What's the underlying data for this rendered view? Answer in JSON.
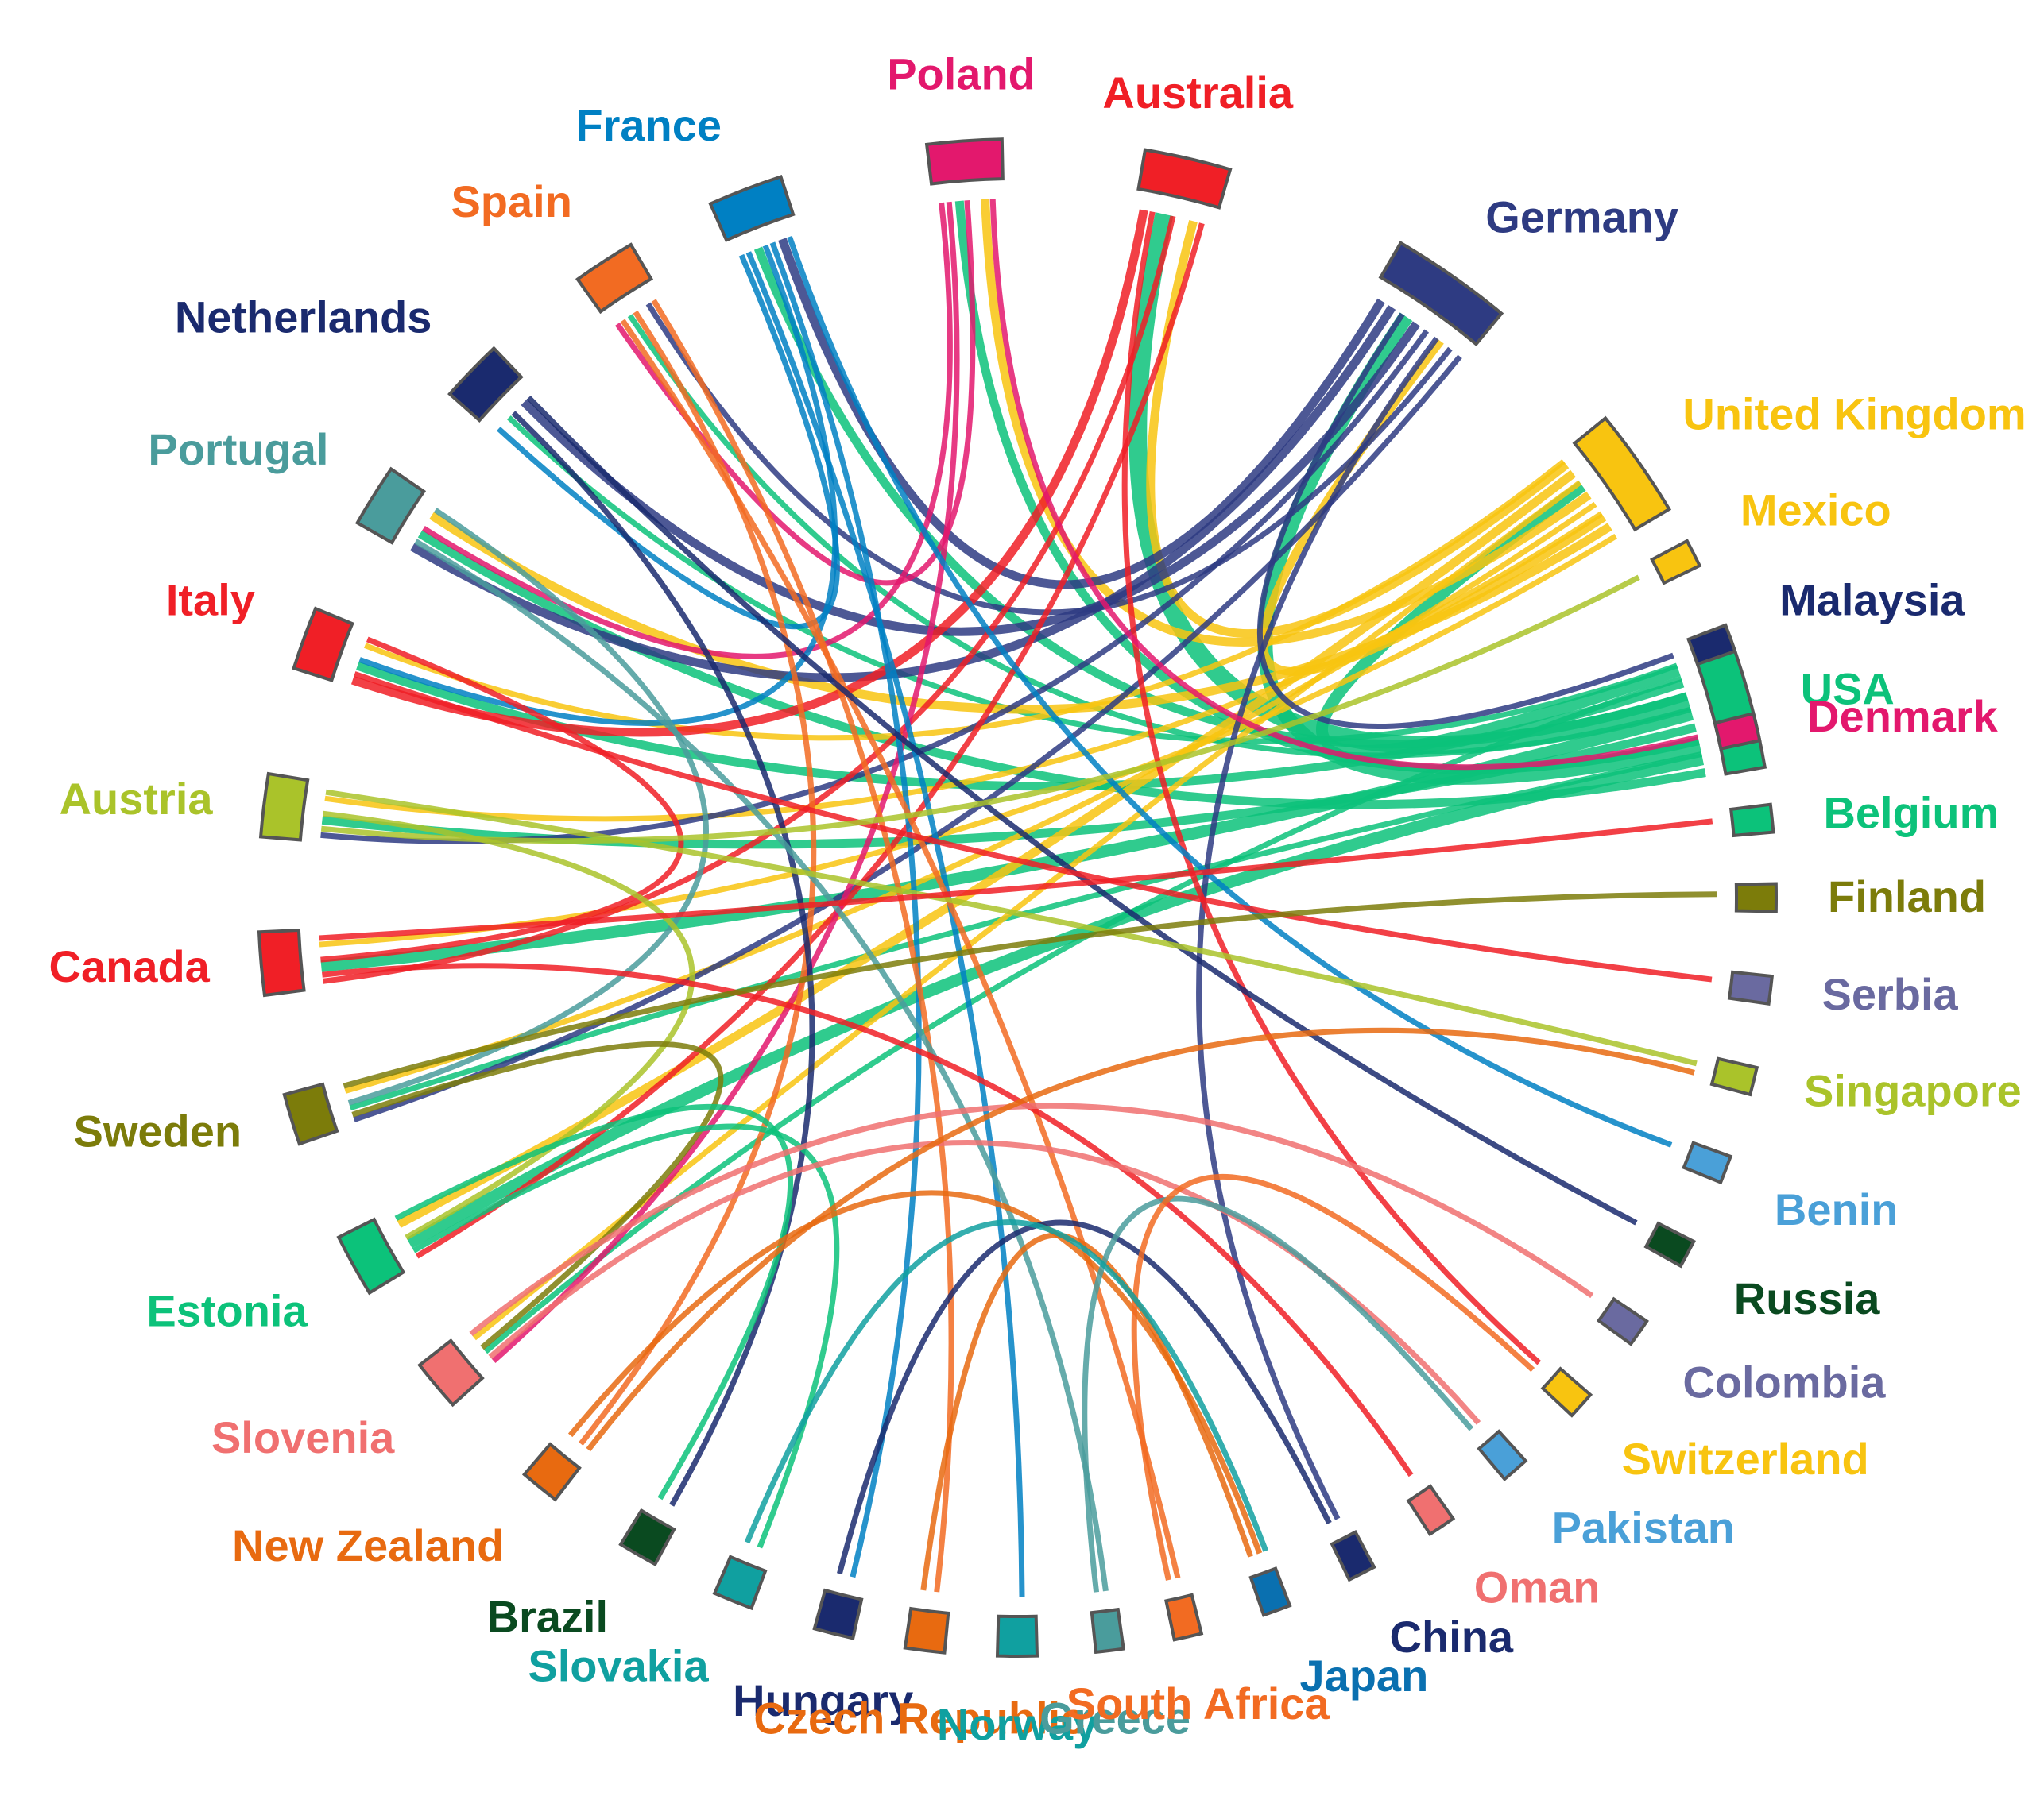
{
  "chart_data": {
    "type": "chord",
    "countries": [
      {
        "id": "usa",
        "label": "USA",
        "color": "#0cc27a",
        "angle": 345,
        "weight": 10
      },
      {
        "id": "uk",
        "label": "United Kingdom",
        "color": "#f8c410",
        "angle": 325,
        "weight": 8
      },
      {
        "id": "germany",
        "label": "Germany",
        "color": "#2e3b82",
        "angle": 305,
        "weight": 9
      },
      {
        "id": "australia",
        "label": "Australia",
        "color": "#f01f26",
        "angle": 283,
        "weight": 6
      },
      {
        "id": "poland",
        "label": "Poland",
        "color": "#e3186d",
        "angle": 266,
        "weight": 5
      },
      {
        "id": "france",
        "label": "France",
        "color": "#0080c3",
        "angle": 249,
        "weight": 5
      },
      {
        "id": "spain",
        "label": "Spain",
        "color": "#f26b22",
        "angle": 237,
        "weight": 4
      },
      {
        "id": "netherlands",
        "label": "Netherlands",
        "color": "#1a2a6e",
        "angle": 224,
        "weight": 4
      },
      {
        "id": "portugal",
        "label": "Portugal",
        "color": "#4a9c9c",
        "angle": 212,
        "weight": 4
      },
      {
        "id": "italy",
        "label": "Italy",
        "color": "#f01f26",
        "angle": 200,
        "weight": 4
      },
      {
        "id": "austria",
        "label": "Austria",
        "color": "#aac32a",
        "angle": 187,
        "weight": 4
      },
      {
        "id": "canada",
        "label": "Canada",
        "color": "#f01f26",
        "angle": 175,
        "weight": 4
      },
      {
        "id": "sweden",
        "label": "Sweden",
        "color": "#7c7c0a",
        "angle": 163,
        "weight": 3
      },
      {
        "id": "estonia",
        "label": "Estonia",
        "color": "#0cc27a",
        "angle": 151,
        "weight": 4
      },
      {
        "id": "slovenia",
        "label": "Slovenia",
        "color": "#f07070",
        "angle": 140,
        "weight": 3
      },
      {
        "id": "newzealand",
        "label": "New Zealand",
        "color": "#e86a10",
        "angle": 129,
        "weight": 2
      },
      {
        "id": "brazil",
        "label": "Brazil",
        "color": "#0a4a20",
        "angle": 120,
        "weight": 2
      },
      {
        "id": "slovakia",
        "label": "Slovakia",
        "color": "#10a0a0",
        "angle": 112,
        "weight": 2
      },
      {
        "id": "hungary",
        "label": "Hungary",
        "color": "#1a2a6e",
        "angle": 104,
        "weight": 2
      },
      {
        "id": "czech",
        "label": "Czech Republic",
        "color": "#e86a10",
        "angle": 97,
        "weight": 2
      },
      {
        "id": "norway",
        "label": "Norway",
        "color": "#10a0a0",
        "angle": 90,
        "weight": 2
      },
      {
        "id": "greece",
        "label": "Greece",
        "color": "#4a9c9c",
        "angle": 83,
        "weight": 1
      },
      {
        "id": "southafrica",
        "label": "South Africa",
        "color": "#f26b22",
        "angle": 77,
        "weight": 1
      },
      {
        "id": "japan",
        "label": "Japan",
        "color": "#0a70b0",
        "angle": 70,
        "weight": 1
      },
      {
        "id": "china",
        "label": "China",
        "color": "#1a2a6e",
        "angle": 63,
        "weight": 1
      },
      {
        "id": "oman",
        "label": "Oman",
        "color": "#f07070",
        "angle": 56,
        "weight": 1
      },
      {
        "id": "pakistan",
        "label": "Pakistan",
        "color": "#4aa0d8",
        "angle": 49,
        "weight": 1
      },
      {
        "id": "switzerland",
        "label": "Switzerland",
        "color": "#f8c410",
        "angle": 42,
        "weight": 1
      },
      {
        "id": "colombia",
        "label": "Colombia",
        "color": "#6a6aa0",
        "angle": 35,
        "weight": 1
      },
      {
        "id": "russia",
        "label": "Russia",
        "color": "#0a4a20",
        "angle": 28,
        "weight": 1
      },
      {
        "id": "benin",
        "label": "Benin",
        "color": "#4aa0d8",
        "angle": 21,
        "weight": 1
      },
      {
        "id": "singapore",
        "label": "Singapore",
        "color": "#aac32a",
        "angle": 14,
        "weight": 1
      },
      {
        "id": "serbia",
        "label": "Serbia",
        "color": "#6a6aa0",
        "angle": 7,
        "weight": 1
      },
      {
        "id": "finland",
        "label": "Finland",
        "color": "#7c7c0a",
        "angle": 0,
        "weight": 1
      },
      {
        "id": "belgium",
        "label": "Belgium",
        "color": "#0cc27a",
        "angle": 354,
        "weight": 1
      },
      {
        "id": "denmark",
        "label": "Denmark",
        "color": "#e3186d",
        "angle": 347,
        "weight": 1
      },
      {
        "id": "malaysia",
        "label": "Malaysia",
        "color": "#1a2a6e",
        "angle": 340,
        "weight": 1
      },
      {
        "id": "mexico",
        "label": "Mexico",
        "color": "#f8c410",
        "angle": 333,
        "weight": 1
      }
    ],
    "links": [
      [
        "usa",
        "australia",
        5
      ],
      [
        "usa",
        "germany",
        4
      ],
      [
        "usa",
        "uk",
        3
      ],
      [
        "usa",
        "canada",
        3
      ],
      [
        "usa",
        "estonia",
        3
      ],
      [
        "usa",
        "italy",
        2
      ],
      [
        "usa",
        "austria",
        2
      ],
      [
        "usa",
        "portugal",
        2
      ],
      [
        "usa",
        "france",
        2
      ],
      [
        "usa",
        "poland",
        2
      ],
      [
        "usa",
        "netherlands",
        1
      ],
      [
        "usa",
        "spain",
        1
      ],
      [
        "usa",
        "sweden",
        1
      ],
      [
        "usa",
        "slovenia",
        1
      ],
      [
        "uk",
        "germany",
        2
      ],
      [
        "uk",
        "australia",
        2
      ],
      [
        "uk",
        "poland",
        2
      ],
      [
        "uk",
        "portugal",
        2
      ],
      [
        "uk",
        "estonia",
        2
      ],
      [
        "uk",
        "sweden",
        1
      ],
      [
        "uk",
        "canada",
        1
      ],
      [
        "uk",
        "slovenia",
        1
      ],
      [
        "uk",
        "austria",
        1
      ],
      [
        "uk",
        "italy",
        1
      ],
      [
        "germany",
        "france",
        2
      ],
      [
        "germany",
        "netherlands",
        2
      ],
      [
        "germany",
        "spain",
        1
      ],
      [
        "germany",
        "portugal",
        2
      ],
      [
        "germany",
        "austria",
        1
      ],
      [
        "germany",
        "sweden",
        1
      ],
      [
        "germany",
        "malaysia",
        1
      ],
      [
        "germany",
        "china",
        1
      ],
      [
        "australia",
        "italy",
        2
      ],
      [
        "australia",
        "canada",
        1
      ],
      [
        "australia",
        "estonia",
        1
      ],
      [
        "australia",
        "switzerland",
        1
      ],
      [
        "poland",
        "portugal",
        1
      ],
      [
        "poland",
        "spain",
        1
      ],
      [
        "poland",
        "denmark",
        1
      ],
      [
        "poland",
        "slovenia",
        1
      ],
      [
        "france",
        "netherlands",
        1
      ],
      [
        "france",
        "italy",
        1
      ],
      [
        "france",
        "benin",
        1
      ],
      [
        "france",
        "norway",
        1
      ],
      [
        "france",
        "hungary",
        1
      ],
      [
        "spain",
        "newzealand",
        1
      ],
      [
        "spain",
        "czech",
        1
      ],
      [
        "spain",
        "southafrica",
        1
      ],
      [
        "netherlands",
        "brazil",
        1
      ],
      [
        "netherlands",
        "russia",
        1
      ],
      [
        "portugal",
        "sweden",
        1
      ],
      [
        "portugal",
        "greece",
        1
      ],
      [
        "italy",
        "canada",
        1
      ],
      [
        "italy",
        "serbia",
        1
      ],
      [
        "austria",
        "estonia",
        1
      ],
      [
        "austria",
        "singapore",
        1
      ],
      [
        "austria",
        "mexico",
        1
      ],
      [
        "canada",
        "belgium",
        1
      ],
      [
        "canada",
        "oman",
        1
      ],
      [
        "sweden",
        "finland",
        1
      ],
      [
        "sweden",
        "slovenia",
        1
      ],
      [
        "estonia",
        "brazil",
        1
      ],
      [
        "estonia",
        "slovakia",
        1
      ],
      [
        "slovenia",
        "colombia",
        1
      ],
      [
        "slovenia",
        "pakistan",
        1
      ],
      [
        "newzealand",
        "japan",
        1
      ],
      [
        "newzealand",
        "singapore",
        1
      ],
      [
        "hungary",
        "china",
        1
      ],
      [
        "czech",
        "japan",
        1
      ],
      [
        "greece",
        "pakistan",
        1
      ],
      [
        "southafrica",
        "switzerland",
        1
      ],
      [
        "slovakia",
        "japan",
        1
      ]
    ]
  }
}
